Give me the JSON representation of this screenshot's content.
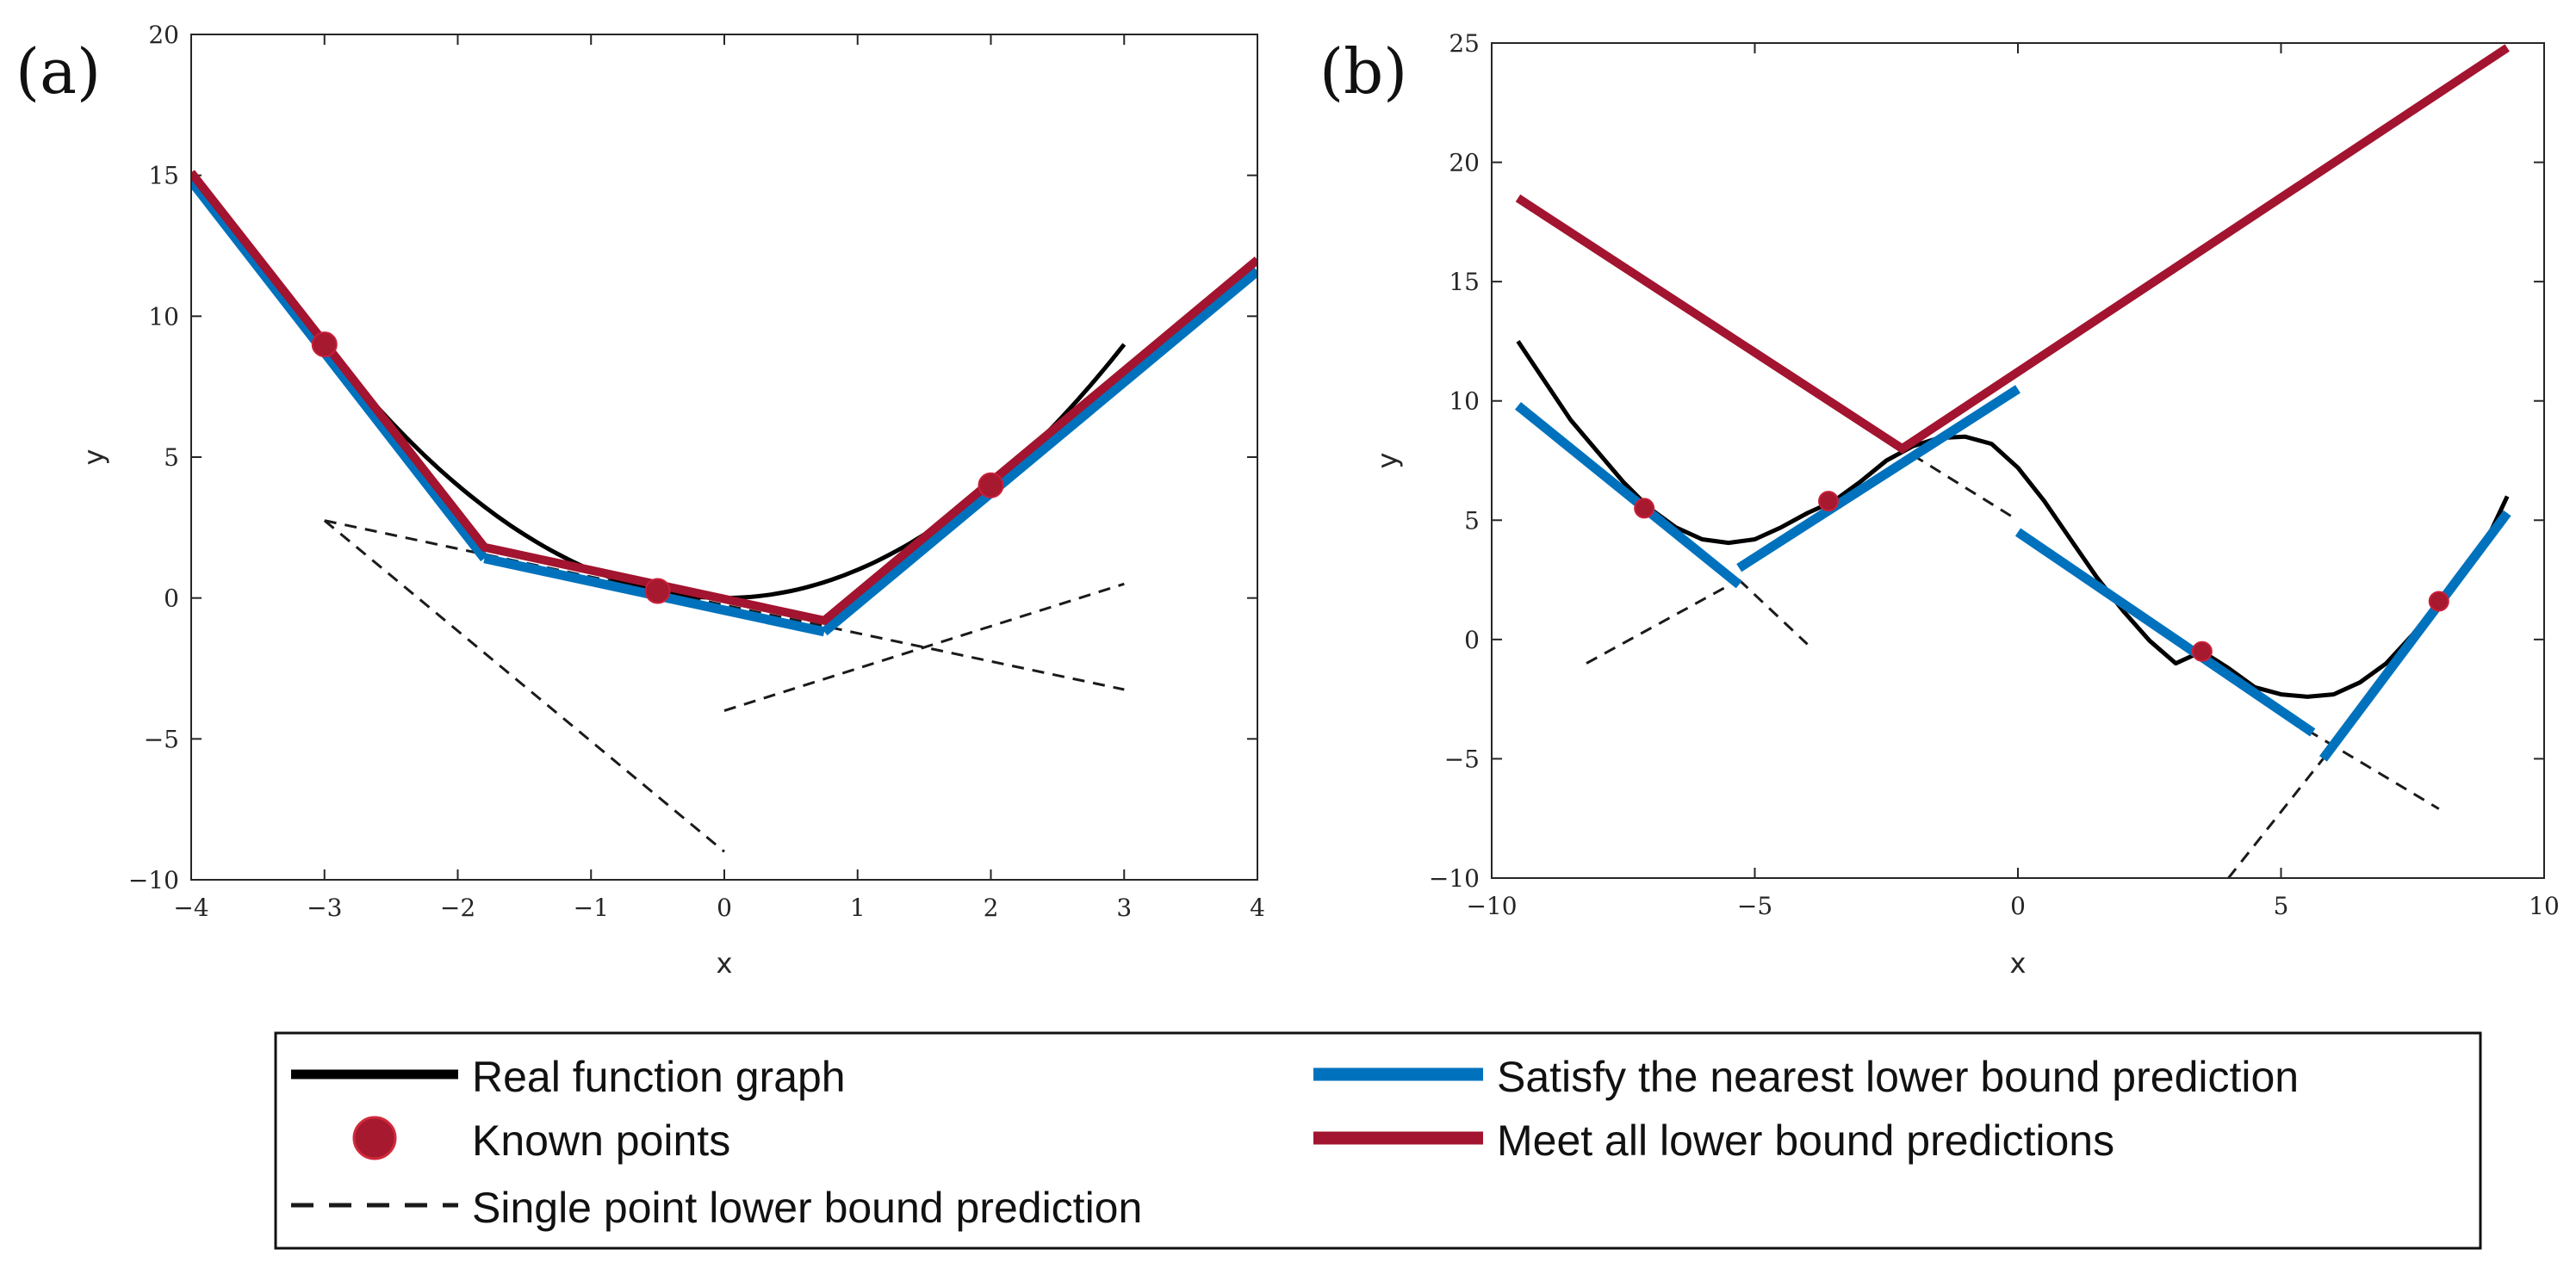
{
  "colors": {
    "real": "#000000",
    "known": "#a6192e",
    "single": "#1a1a1a",
    "nearest": "#0072bd",
    "meet": "#a2142f"
  },
  "chart_data": [
    {
      "type": "line",
      "panel_label": "(a)",
      "xlabel": "x",
      "ylabel": "y",
      "xlim": [
        -4,
        4
      ],
      "ylim": [
        -10,
        20
      ],
      "xticks": [
        -4,
        -3,
        -2,
        -1,
        0,
        1,
        2,
        3,
        4
      ],
      "xtick_labels": [
        "−4",
        "−3",
        "−2",
        "−1",
        "0",
        "1",
        "2",
        "3",
        "4"
      ],
      "yticks": [
        -10,
        -5,
        0,
        5,
        10,
        15,
        20
      ],
      "ytick_labels": [
        "−10",
        "−5",
        "0",
        "5",
        "10",
        "15",
        "20"
      ],
      "real_function": {
        "name": "Real function graph",
        "x_range": [
          -3,
          3
        ],
        "formula": "x^2"
      },
      "known_points": {
        "name": "Known points",
        "x": [
          -3,
          -0.5,
          2
        ],
        "y": [
          9,
          0.25,
          4
        ]
      },
      "single_point_predictions": {
        "name": "Single point lower bound prediction",
        "segments": [
          {
            "x": [
              -3,
              0
            ],
            "y": [
              2.75,
              -9
            ]
          },
          {
            "x": [
              -3,
              3
            ],
            "y": [
              2.75,
              -3.25
            ]
          },
          {
            "x": [
              0,
              3
            ],
            "y": [
              -4,
              0.5
            ]
          }
        ]
      },
      "nearest_lower_bound": {
        "name": "Satisfy the nearest lower bound prediction",
        "segments": [
          {
            "x": [
              -4,
              -1.8
            ],
            "y": [
              14.8,
              1.4
            ]
          },
          {
            "x": [
              -1.8,
              0.75
            ],
            "y": [
              1.4,
              -1.2
            ]
          },
          {
            "x": [
              0.75,
              4
            ],
            "y": [
              -1.2,
              11.6
            ]
          }
        ]
      },
      "meet_all_lower_bounds": {
        "name": "Meet all lower bound predictions",
        "x": [
          -4,
          -1.8,
          0.75,
          4
        ],
        "y": [
          15.1,
          1.8,
          -0.8,
          12
        ]
      }
    },
    {
      "type": "line",
      "panel_label": "(b)",
      "xlabel": "x",
      "ylabel": "y",
      "xlim": [
        -10,
        10
      ],
      "ylim": [
        -10,
        25
      ],
      "xticks": [
        -10,
        -5,
        0,
        5,
        10
      ],
      "xtick_labels": [
        "−10",
        "−5",
        "0",
        "5",
        "10"
      ],
      "yticks": [
        -10,
        -5,
        0,
        5,
        10,
        15,
        20,
        25
      ],
      "ytick_labels": [
        "−10",
        "−5",
        "0",
        "5",
        "10",
        "15",
        "20",
        "25"
      ],
      "real_function": {
        "name": "Real function graph",
        "x": [
          -9.5,
          -8.5,
          -7.5,
          -7,
          -6.5,
          -6,
          -5.5,
          -5,
          -4.5,
          -4,
          -3.5,
          -3,
          -2.5,
          -2,
          -1.5,
          -1,
          -0.5,
          0,
          0.5,
          1,
          1.5,
          2,
          2.5,
          3,
          3.5,
          4,
          4.5,
          5,
          5.5,
          6,
          6.5,
          7,
          7.5,
          8,
          8.5,
          9,
          9.3
        ],
        "y": [
          12.5,
          9.2,
          6.6,
          5.5,
          4.7,
          4.2,
          4.05,
          4.2,
          4.7,
          5.3,
          5.8,
          6.6,
          7.5,
          8.1,
          8.45,
          8.5,
          8.2,
          7.2,
          5.8,
          4.2,
          2.6,
          1.2,
          -0.05,
          -1.0,
          -0.5,
          -1.2,
          -2.0,
          -2.3,
          -2.4,
          -2.3,
          -1.8,
          -1.0,
          0.2,
          1.6,
          3.0,
          4.6,
          6.0
        ]
      },
      "known_points": {
        "name": "Known points",
        "x": [
          -7.1,
          -3.6,
          3.5,
          8
        ],
        "y": [
          5.5,
          5.8,
          -0.5,
          1.6
        ]
      },
      "single_point_predictions": {
        "name": "Single point lower bound prediction",
        "segments": [
          {
            "x": [
              -8.2,
              -5.3
            ],
            "y": [
              -1,
              2.5
            ]
          },
          {
            "x": [
              -5.3,
              -4
            ],
            "y": [
              2.5,
              -0.2
            ]
          },
          {
            "x": [
              -3,
              0
            ],
            "y": [
              9.1,
              5
            ]
          },
          {
            "x": [
              5.5,
              8
            ],
            "y": [
              -3.8,
              -7.1
            ]
          },
          {
            "x": [
              4,
              5.8
            ],
            "y": [
              -10,
              -5
            ]
          }
        ]
      },
      "nearest_lower_bound": {
        "name": "Satisfy the nearest lower bound prediction",
        "segments": [
          {
            "x": [
              -9.5,
              -5.3
            ],
            "y": [
              9.8,
              2.3
            ]
          },
          {
            "x": [
              -5.3,
              0
            ],
            "y": [
              3,
              10.5
            ]
          },
          {
            "x": [
              0,
              5.6
            ],
            "y": [
              4.5,
              -3.9
            ]
          },
          {
            "x": [
              5.8,
              9.3
            ],
            "y": [
              -5,
              5.3
            ]
          }
        ]
      },
      "meet_all_lower_bounds": {
        "name": "Meet all lower bound predictions",
        "x": [
          -9.5,
          -2.2,
          9.3
        ],
        "y": [
          18.5,
          8,
          24.8
        ]
      }
    }
  ],
  "legend": {
    "real": "Real function graph",
    "known": "Known points",
    "single": "Single point lower bound prediction",
    "nearest": "Satisfy the nearest lower bound prediction",
    "meet": "Meet all lower bound predictions"
  }
}
